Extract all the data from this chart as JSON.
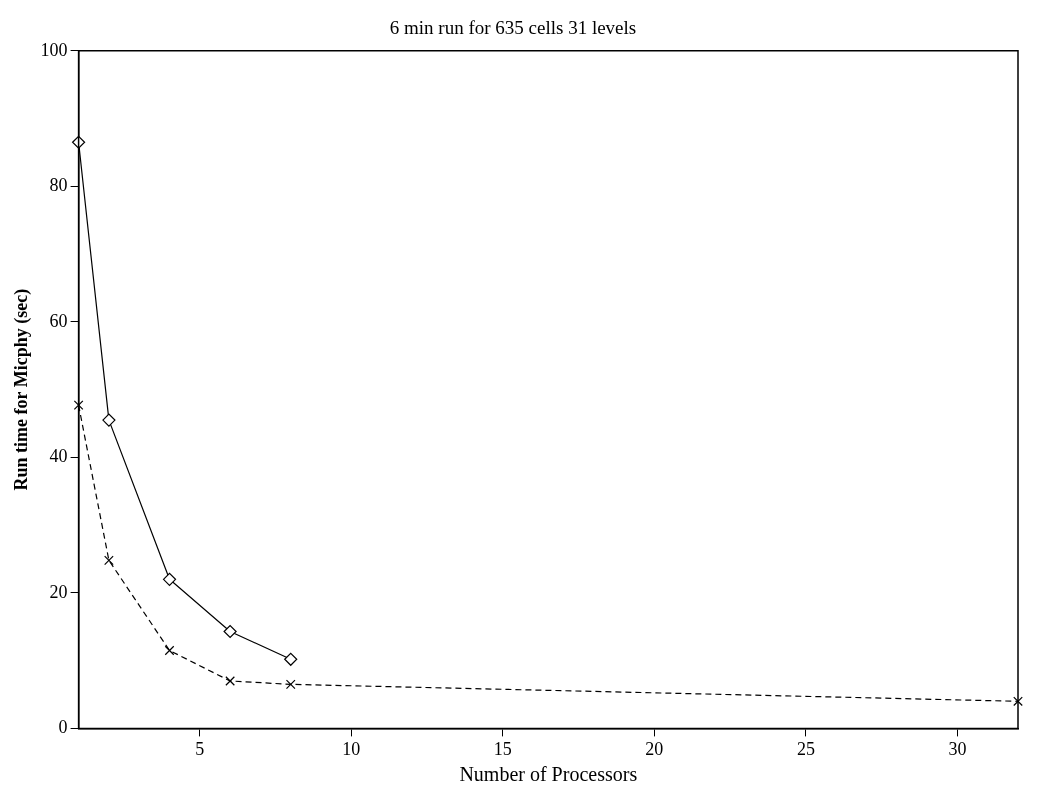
{
  "chart_data": {
    "type": "line",
    "title": "6 min run for 635 cells 31 levels",
    "xlabel": "Number of Processors",
    "ylabel": "Run time for Micphy (sec)",
    "xlim": [
      1,
      32
    ],
    "xticks": [
      5,
      10,
      15,
      20,
      25,
      30
    ],
    "ylim": [
      0,
      100
    ],
    "yticks": [
      0,
      20,
      40,
      60,
      80,
      100
    ],
    "grid": false,
    "legend": false,
    "series": [
      {
        "color": "#000000",
        "marker": "diamond",
        "line_style": "solid",
        "x": [
          1,
          2,
          4,
          6,
          8
        ],
        "values": [
          86.5,
          45.5,
          22,
          14.3,
          10.2
        ]
      },
      {
        "color": "#000000",
        "marker": "cross",
        "line_style": "dashed",
        "x": [
          1,
          2,
          4,
          6,
          8,
          32
        ],
        "values": [
          47.7,
          24.8,
          11.5,
          7,
          6.5,
          4
        ]
      }
    ]
  }
}
